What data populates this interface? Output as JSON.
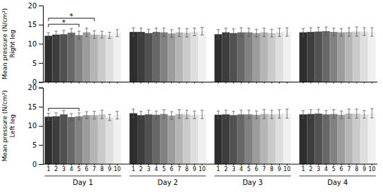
{
  "chart_data": [
    {
      "type": "bar",
      "ylabel": "Mean pressure (N/cm²)\nRight leg",
      "categories": [
        null,
        null,
        null,
        null
      ],
      "series": [
        {
          "color": "#2e2e2e",
          "values": [
            12.1,
            13.1,
            12.5,
            13.0
          ],
          "errors": [
            0.8,
            1.1,
            1.2,
            1.0
          ]
        },
        {
          "color": "#3d3d3d",
          "values": [
            12.4,
            13.1,
            13.0,
            13.1
          ],
          "errors": [
            0.9,
            1.0,
            1.1,
            1.1
          ]
        },
        {
          "color": "#515151",
          "values": [
            12.5,
            12.8,
            12.8,
            13.2
          ],
          "errors": [
            1.0,
            1.0,
            1.1,
            1.1
          ]
        },
        {
          "color": "#686868",
          "values": [
            12.9,
            13.1,
            13.0,
            13.3
          ],
          "errors": [
            1.1,
            1.0,
            1.2,
            1.1
          ]
        },
        {
          "color": "#828282",
          "values": [
            12.3,
            13.0,
            13.0,
            13.1
          ],
          "errors": [
            1.0,
            1.1,
            1.1,
            1.0
          ]
        },
        {
          "color": "#9c9c9c",
          "values": [
            13.0,
            12.7,
            12.8,
            13.0
          ],
          "errors": [
            1.1,
            1.0,
            1.0,
            1.0
          ]
        },
        {
          "color": "#b5b5b5",
          "values": [
            12.4,
            13.0,
            13.0,
            13.1
          ],
          "errors": [
            1.0,
            1.1,
            1.1,
            1.1
          ]
        },
        {
          "color": "#cacaca",
          "values": [
            12.4,
            12.9,
            12.8,
            13.2
          ],
          "errors": [
            0.9,
            1.1,
            1.0,
            1.2
          ]
        },
        {
          "color": "#dedede",
          "values": [
            12.2,
            13.1,
            13.0,
            13.2
          ],
          "errors": [
            0.8,
            1.0,
            1.1,
            1.0
          ]
        },
        {
          "color": "#f0f0f0",
          "values": [
            12.8,
            13.3,
            13.1,
            13.1
          ],
          "errors": [
            0.9,
            1.0,
            1.1,
            1.1
          ]
        }
      ],
      "ylim": [
        0,
        20
      ],
      "yticks": [
        0,
        5,
        10,
        15,
        20
      ],
      "tick_labels": "y",
      "annotations": [
        {
          "text": "*",
          "category": 0,
          "series": [
            0,
            4
          ],
          "y": 15.1
        },
        {
          "text": "*",
          "category": 0,
          "series": [
            0,
            6
          ],
          "y": 16.7
        }
      ]
    },
    {
      "type": "bar",
      "ylabel": "Mean pressure (N/cm²)\nLeft leg",
      "categories": [
        "Day 1",
        "Day 2",
        "Day 3",
        "Day 4"
      ],
      "series": [
        {
          "name": "1",
          "color": "#2e2e2e",
          "values": [
            12.4,
            13.3,
            12.9,
            13.0
          ],
          "errors": [
            0.9,
            1.1,
            1.0,
            1.0
          ]
        },
        {
          "name": "2",
          "color": "#3d3d3d",
          "values": [
            12.5,
            12.8,
            13.0,
            13.1
          ],
          "errors": [
            0.9,
            1.0,
            1.1,
            1.1
          ]
        },
        {
          "name": "3",
          "color": "#515151",
          "values": [
            13.0,
            13.0,
            12.8,
            13.2
          ],
          "errors": [
            1.0,
            1.1,
            1.0,
            1.1
          ]
        },
        {
          "name": "4",
          "color": "#686868",
          "values": [
            12.3,
            12.9,
            13.0,
            13.0
          ],
          "errors": [
            0.9,
            1.0,
            1.1,
            1.0
          ]
        },
        {
          "name": "5",
          "color": "#828282",
          "values": [
            12.5,
            13.1,
            13.0,
            13.1
          ],
          "errors": [
            0.9,
            1.1,
            1.1,
            1.1
          ]
        },
        {
          "name": "6",
          "color": "#9c9c9c",
          "values": [
            12.8,
            12.7,
            12.9,
            12.9
          ],
          "errors": [
            0.9,
            1.0,
            1.0,
            1.0
          ]
        },
        {
          "name": "7",
          "color": "#b5b5b5",
          "values": [
            12.8,
            13.1,
            13.1,
            13.2
          ],
          "errors": [
            1.0,
            1.1,
            1.2,
            1.2
          ]
        },
        {
          "name": "8",
          "color": "#cacaca",
          "values": [
            13.0,
            13.0,
            13.0,
            13.2
          ],
          "errors": [
            1.1,
            1.1,
            1.1,
            1.2
          ]
        },
        {
          "name": "9",
          "color": "#dedede",
          "values": [
            12.2,
            12.9,
            13.1,
            13.0
          ],
          "errors": [
            0.8,
            1.0,
            1.1,
            1.0
          ]
        },
        {
          "name": "10",
          "color": "#f0f0f0",
          "values": [
            12.8,
            13.0,
            13.2,
            13.3
          ],
          "errors": [
            1.0,
            1.1,
            1.2,
            1.2
          ]
        }
      ],
      "ylim": [
        0,
        20
      ],
      "yticks": [
        0,
        5,
        10,
        15,
        20
      ],
      "annotations": [
        {
          "category": 0,
          "series": [
            0,
            4
          ],
          "y": 14.6
        }
      ]
    }
  ]
}
